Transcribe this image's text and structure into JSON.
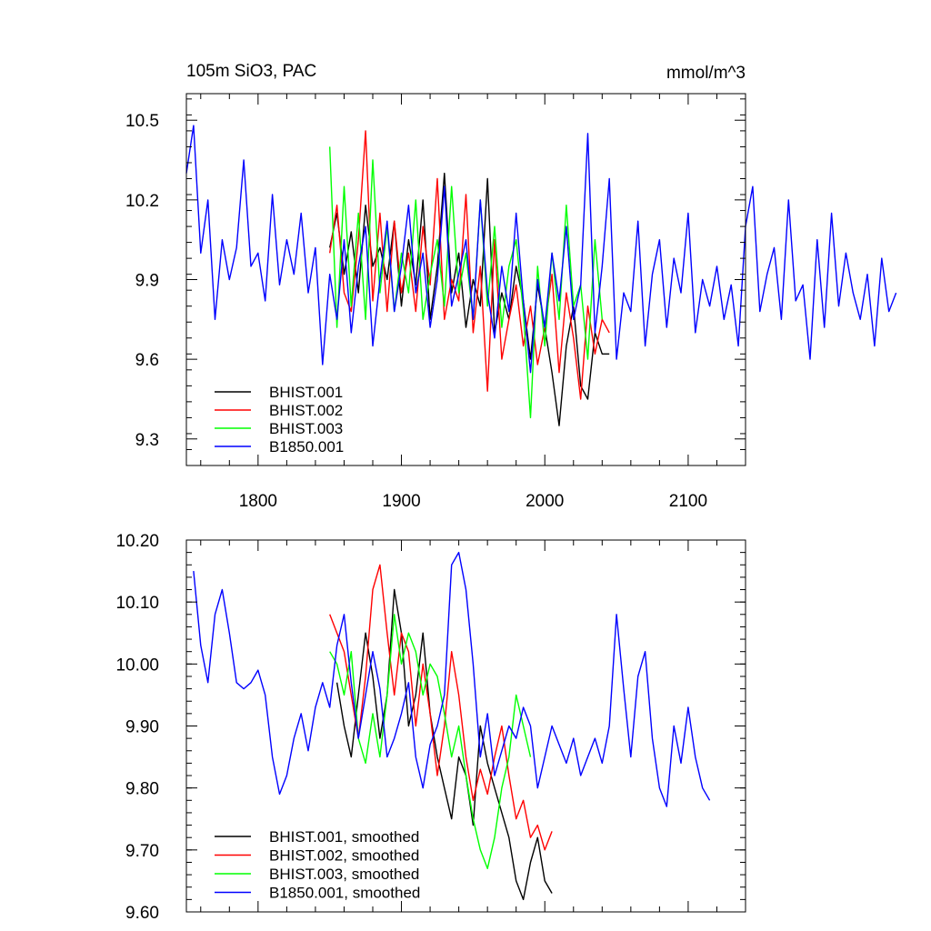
{
  "chart_data": [
    {
      "type": "line",
      "title_left": "105m SiO3, PAC",
      "title_right": "mmol/m^3",
      "xlim": [
        1750,
        2140
      ],
      "ylim": [
        9.2,
        10.6
      ],
      "x_ticks": [
        1800,
        1900,
        2000,
        2100
      ],
      "x_tick_labels": [
        "1800",
        "1900",
        "2000",
        "2100"
      ],
      "y_ticks": [
        9.3,
        9.6,
        9.9,
        10.2,
        10.5
      ],
      "y_tick_labels": [
        "9.3",
        "9.6",
        "9.9",
        "10.2",
        "10.5"
      ],
      "legend": [
        "BHIST.001",
        "BHIST.002",
        "BHIST.003",
        "B1850.001"
      ],
      "series": [
        {
          "name": "BHIST.001",
          "color": "#000000",
          "x_start": 1850,
          "x_step": 5,
          "values": [
            10.02,
            10.15,
            9.92,
            10.08,
            9.85,
            10.18,
            9.95,
            10.02,
            9.9,
            10.12,
            9.8,
            10.05,
            9.88,
            10.2,
            9.75,
            9.95,
            10.3,
            9.85,
            10.0,
            9.72,
            9.9,
            9.8,
            10.28,
            9.7,
            9.85,
            9.75,
            9.95,
            9.82,
            9.6,
            9.88,
            9.72,
            9.55,
            9.35,
            9.65,
            9.8,
            9.5,
            9.45,
            9.7,
            9.62,
            9.62
          ]
        },
        {
          "name": "BHIST.002",
          "color": "#ff0000",
          "x_start": 1850,
          "x_step": 5,
          "values": [
            10.0,
            10.18,
            9.85,
            9.78,
            10.05,
            10.46,
            9.82,
            10.15,
            9.78,
            10.12,
            9.85,
            10.0,
            9.78,
            10.1,
            9.88,
            10.28,
            9.75,
            9.9,
            9.82,
            10.22,
            9.7,
            9.95,
            9.48,
            10.05,
            9.6,
            9.75,
            9.88,
            9.65,
            9.8,
            9.58,
            9.72,
            9.92,
            9.55,
            9.85,
            9.68,
            9.45,
            9.8,
            9.62,
            9.75,
            9.7
          ]
        },
        {
          "name": "BHIST.003",
          "color": "#00ff00",
          "x_start": 1850,
          "x_step": 5,
          "values": [
            10.4,
            9.72,
            10.25,
            9.8,
            10.15,
            9.75,
            10.35,
            9.85,
            10.1,
            9.78,
            10.0,
            9.85,
            10.2,
            9.75,
            9.92,
            10.05,
            9.8,
            10.25,
            9.85,
            10.0,
            9.75,
            10.2,
            9.8,
            10.1,
            9.72,
            9.95,
            10.05,
            9.78,
            9.38,
            9.95,
            9.65,
            10.0,
            9.75,
            10.18,
            9.8,
            9.88,
            9.6,
            10.05,
            9.75
          ]
        },
        {
          "name": "B1850.001",
          "color": "#0000ff",
          "x_start": 1750,
          "x_step": 5,
          "values": [
            10.3,
            10.48,
            10.0,
            10.2,
            9.75,
            10.05,
            9.9,
            10.02,
            10.35,
            9.95,
            10.0,
            9.82,
            10.22,
            9.88,
            10.05,
            9.92,
            10.15,
            9.85,
            10.02,
            9.58,
            9.92,
            9.75,
            10.05,
            9.7,
            9.95,
            10.1,
            9.65,
            9.9,
            10.12,
            9.78,
            9.95,
            10.18,
            9.85,
            10.0,
            9.72,
            9.9,
            10.25,
            9.8,
            9.92,
            10.05,
            9.75,
            10.2,
            9.85,
            9.68,
            9.95,
            9.78,
            10.15,
            9.82,
            9.55,
            9.9,
            9.72,
            10.0,
            9.82,
            10.1,
            9.75,
            9.88,
            10.45,
            9.7,
            9.95,
            10.28,
            9.6,
            9.85,
            9.78,
            10.12,
            9.65,
            9.92,
            10.05,
            9.72,
            9.98,
            9.85,
            10.15,
            9.7,
            9.9,
            9.8,
            9.95,
            9.75,
            9.88,
            9.65,
            10.1,
            10.25,
            9.78,
            9.92,
            10.02,
            9.75,
            10.2,
            9.82,
            9.88,
            9.6,
            10.05,
            9.72,
            10.15,
            9.8,
            10.0,
            9.85,
            9.75,
            9.92,
            9.65,
            9.98,
            9.78,
            9.85
          ]
        }
      ]
    },
    {
      "type": "line",
      "xlim": [
        1750,
        2140
      ],
      "ylim": [
        9.6,
        10.2
      ],
      "y_ticks": [
        9.6,
        9.7,
        9.8,
        9.9,
        10.0,
        10.1,
        10.2
      ],
      "y_tick_labels": [
        "9.60",
        "9.70",
        "9.80",
        "9.90",
        "10.00",
        "10.10",
        "10.20"
      ],
      "legend": [
        "BHIST.001, smoothed",
        "BHIST.002, smoothed",
        "BHIST.003, smoothed",
        "B1850.001, smoothed"
      ],
      "series": [
        {
          "name": "BHIST.001, smoothed",
          "color": "#000000",
          "x_start": 1855,
          "x_step": 5,
          "values": [
            9.97,
            9.9,
            9.85,
            9.95,
            10.05,
            9.98,
            9.88,
            9.95,
            10.12,
            10.05,
            9.9,
            9.95,
            10.05,
            9.92,
            9.85,
            9.8,
            9.75,
            9.85,
            9.82,
            9.74,
            9.9,
            9.84,
            9.8,
            9.76,
            9.72,
            9.65,
            9.62,
            9.68,
            9.72,
            9.65,
            9.63
          ]
        },
        {
          "name": "BHIST.002, smoothed",
          "color": "#ff0000",
          "x_start": 1850,
          "x_step": 5,
          "values": [
            10.08,
            10.05,
            10.02,
            9.95,
            9.88,
            9.98,
            10.12,
            10.16,
            10.05,
            9.95,
            10.05,
            10.02,
            9.9,
            10.0,
            9.92,
            9.82,
            9.9,
            10.02,
            9.95,
            9.85,
            9.78,
            9.83,
            9.79,
            9.85,
            9.9,
            9.82,
            9.75,
            9.78,
            9.72,
            9.74,
            9.7,
            9.73
          ]
        },
        {
          "name": "BHIST.003, smoothed",
          "color": "#00ff00",
          "x_start": 1850,
          "x_step": 5,
          "values": [
            10.02,
            10.0,
            9.95,
            10.02,
            9.88,
            9.84,
            9.92,
            9.85,
            9.95,
            10.08,
            10.0,
            10.05,
            10.02,
            9.95,
            10.0,
            9.98,
            9.92,
            9.85,
            9.9,
            9.82,
            9.75,
            9.7,
            9.67,
            9.72,
            9.8,
            9.85,
            9.95,
            9.9,
            9.85
          ]
        },
        {
          "name": "B1850.001, smoothed",
          "color": "#0000ff",
          "x_start": 1755,
          "x_step": 5,
          "values": [
            10.15,
            10.03,
            9.97,
            10.08,
            10.12,
            10.05,
            9.97,
            9.96,
            9.97,
            9.99,
            9.95,
            9.85,
            9.79,
            9.82,
            9.88,
            9.92,
            9.86,
            9.93,
            9.97,
            9.93,
            10.03,
            10.08,
            9.97,
            9.88,
            9.95,
            10.02,
            9.96,
            9.85,
            9.88,
            9.92,
            9.97,
            9.85,
            9.8,
            9.87,
            9.9,
            9.95,
            10.16,
            10.18,
            10.12,
            10.0,
            9.85,
            9.92,
            9.82,
            9.86,
            9.9,
            9.88,
            9.93,
            9.9,
            9.8,
            9.85,
            9.9,
            9.87,
            9.84,
            9.88,
            9.82,
            9.85,
            9.88,
            9.84,
            9.9,
            10.08,
            9.96,
            9.85,
            9.98,
            10.02,
            9.88,
            9.8,
            9.77,
            9.9,
            9.84,
            9.93,
            9.85,
            9.8,
            9.78
          ]
        }
      ]
    }
  ]
}
